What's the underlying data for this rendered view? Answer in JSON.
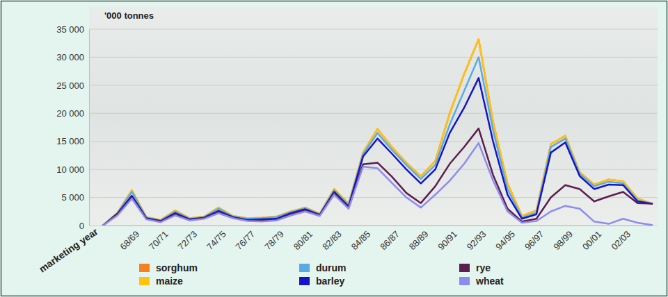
{
  "chart_data": {
    "type": "line",
    "y_label": "'000 tonnes",
    "x_label": "marketing year",
    "stacked": true,
    "grid": true,
    "legend": "bottom",
    "categories": [
      null,
      null,
      "68/69",
      null,
      "70/71",
      null,
      "72/73",
      null,
      "74/75",
      null,
      "76/77",
      null,
      "78/79",
      null,
      "80/81",
      null,
      "82/83",
      null,
      "84/85",
      null,
      "86/87",
      null,
      "88/89",
      null,
      "90/91",
      null,
      "92/93",
      null,
      "94/95",
      null,
      "96/97",
      null,
      "98/99",
      null,
      "00/01",
      null,
      "02/03",
      null,
      null
    ],
    "ylim": [
      0,
      35000
    ],
    "yticks": [
      0,
      {
        "value": 5000,
        "label": "5 000"
      },
      {
        "value": 10000,
        "label": "10 000"
      },
      {
        "value": 15000,
        "label": "15 000"
      },
      {
        "value": 20000,
        "label": "20 000"
      },
      {
        "value": 25000,
        "label": "25 000"
      },
      {
        "value": 30000,
        "label": "30 000"
      },
      {
        "value": 35000,
        "label": "35 000"
      }
    ],
    "series": [
      {
        "name": "sorghum",
        "color": "#f58220",
        "values": [
          0,
          0,
          0,
          0,
          0,
          0,
          0,
          0,
          0,
          0,
          0,
          0,
          0,
          0,
          0,
          0,
          0,
          0,
          0,
          0,
          0,
          0,
          0,
          0,
          0,
          0,
          0,
          0,
          0,
          0,
          0,
          0,
          0,
          0,
          0,
          0,
          0,
          0,
          0
        ]
      },
      {
        "name": "maize",
        "color": "#ffc20e",
        "values": [
          0,
          100,
          300,
          100,
          100,
          200,
          100,
          100,
          200,
          100,
          100,
          100,
          100,
          100,
          100,
          100,
          200,
          200,
          300,
          700,
          500,
          400,
          500,
          700,
          2000,
          3000,
          3200,
          1500,
          1000,
          300,
          400,
          500,
          500,
          300,
          300,
          400,
          400,
          300,
          0
        ]
      },
      {
        "name": "durum",
        "color": "#5aaae6",
        "values": [
          0,
          100,
          700,
          100,
          100,
          300,
          100,
          100,
          400,
          100,
          200,
          200,
          300,
          200,
          200,
          100,
          300,
          300,
          400,
          1000,
          700,
          800,
          800,
          800,
          1500,
          3000,
          3700,
          2000,
          1000,
          200,
          300,
          1000,
          700,
          400,
          500,
          500,
          300,
          200,
          0
        ]
      },
      {
        "name": "barley",
        "color": "#1414c8",
        "values": [
          0,
          100,
          300,
          100,
          100,
          200,
          100,
          100,
          200,
          100,
          100,
          200,
          200,
          200,
          200,
          100,
          200,
          200,
          1400,
          4300,
          4100,
          4200,
          3500,
          3000,
          5500,
          7000,
          9000,
          6000,
          2500,
          500,
          800,
          8000,
          7600,
          2300,
          2200,
          2100,
          1200,
          300,
          0
        ]
      },
      {
        "name": "rye",
        "color": "#5c1e4f",
        "values": [
          0,
          200,
          200,
          100,
          100,
          200,
          100,
          100,
          200,
          100,
          100,
          200,
          100,
          200,
          200,
          100,
          300,
          200,
          400,
          1000,
          1100,
          800,
          800,
          1500,
          3000,
          3000,
          2600,
          1000,
          500,
          200,
          400,
          2500,
          3700,
          3500,
          3600,
          4900,
          4800,
          3500,
          3800
        ]
      },
      {
        "name": "wheat",
        "color": "#8c8cf0",
        "values": [
          0,
          1800,
          4800,
          1100,
          600,
          1800,
          900,
          1200,
          2200,
          1300,
          800,
          700,
          900,
          1800,
          2500,
          1700,
          5500,
          3000,
          10500,
          10200,
          7600,
          5000,
          3200,
          5500,
          8000,
          11000,
          14700,
          8000,
          2500,
          500,
          800,
          2500,
          3500,
          3000,
          700,
          300,
          1200,
          500,
          100
        ]
      }
    ]
  }
}
